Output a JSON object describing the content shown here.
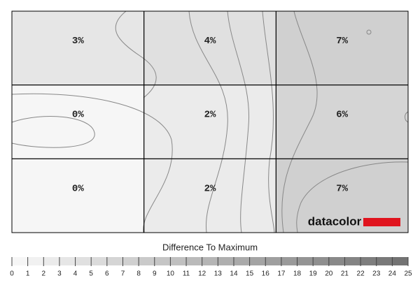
{
  "chart_data": {
    "type": "heatmap",
    "values": [
      [
        3,
        4,
        7
      ],
      [
        0,
        2,
        6
      ],
      [
        0,
        2,
        7
      ]
    ],
    "value_labels": [
      [
        "3%",
        "4%",
        "7%"
      ],
      [
        "0%",
        "2%",
        "6%"
      ],
      [
        "0%",
        "2%",
        "7%"
      ]
    ],
    "colorbar": {
      "title": "Difference To Maximum",
      "lim": [
        0,
        25
      ],
      "ticks": [
        0,
        1,
        2,
        3,
        4,
        5,
        6,
        7,
        8,
        9,
        10,
        11,
        12,
        13,
        14,
        15,
        16,
        17,
        18,
        19,
        20,
        21,
        22,
        23,
        24,
        25
      ]
    },
    "logo": "datacolor"
  }
}
